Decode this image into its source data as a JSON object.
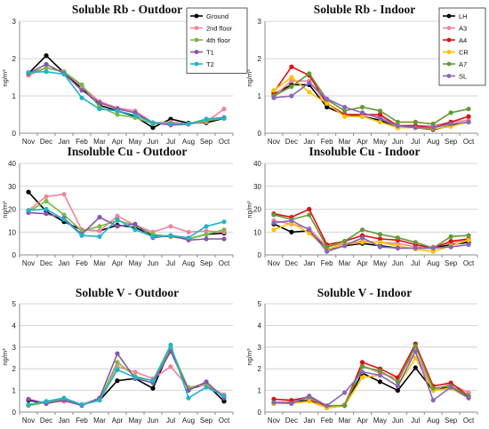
{
  "chart_data": [
    {
      "type": "line",
      "title": "Soluble Rb - Outdoor",
      "ylabel": "ng/m³",
      "ylim": [
        0,
        3
      ],
      "yticks": [
        "0",
        "1",
        "2",
        "3"
      ],
      "categories": [
        "Nov",
        "Dec",
        "Jan",
        "Feb",
        "Mar",
        "Apr",
        "May",
        "Jun",
        "Jul",
        "Aug",
        "Sep",
        "Oct"
      ],
      "legend": "top-right",
      "series": [
        {
          "name": "Ground",
          "color": "#000000",
          "values": [
            1.6,
            2.08,
            1.62,
            1.2,
            0.75,
            0.6,
            0.45,
            0.15,
            0.38,
            0.27,
            0.28,
            0.4
          ]
        },
        {
          "name": "2nd floor",
          "color": "#f4849b",
          "values": [
            1.55,
            1.75,
            1.65,
            1.25,
            0.85,
            0.68,
            0.6,
            0.28,
            0.3,
            0.25,
            0.3,
            0.65
          ]
        },
        {
          "name": "4th floor",
          "color": "#77bb44",
          "values": [
            1.6,
            1.75,
            1.65,
            1.3,
            0.7,
            0.5,
            0.42,
            0.25,
            0.27,
            0.24,
            0.33,
            0.4
          ]
        },
        {
          "name": "T1",
          "color": "#8855aa",
          "values": [
            1.6,
            1.85,
            1.6,
            1.15,
            0.82,
            0.65,
            0.55,
            0.28,
            0.22,
            0.24,
            0.38,
            0.42
          ]
        },
        {
          "name": "T2",
          "color": "#1fb5c8",
          "values": [
            1.63,
            1.65,
            1.58,
            0.95,
            0.65,
            0.6,
            0.48,
            0.28,
            0.25,
            0.25,
            0.38,
            0.4
          ]
        }
      ]
    },
    {
      "type": "line",
      "title": "Soluble Rb - Indoor",
      "ylabel": "ng/m³",
      "ylim": [
        0,
        3
      ],
      "yticks": [
        "0",
        "1",
        "2",
        "3"
      ],
      "categories": [
        "Nov",
        "Dec",
        "Jan",
        "Feb",
        "Mar",
        "Apr",
        "May",
        "Jun",
        "Jul",
        "Aug",
        "Sep",
        "Oct"
      ],
      "legend": "top-right",
      "series": [
        {
          "name": "LH",
          "color": "#000000",
          "values": [
            1.05,
            1.3,
            1.3,
            0.7,
            0.5,
            0.45,
            0.35,
            0.15,
            0.15,
            0.1,
            0.2,
            0.3
          ]
        },
        {
          "name": "A3",
          "color": "#f4849b",
          "values": [
            1.0,
            1.4,
            1.4,
            0.8,
            0.5,
            0.5,
            0.45,
            0.2,
            0.2,
            0.2,
            0.3,
            0.35
          ]
        },
        {
          "name": "A4",
          "color": "#dd1111",
          "values": [
            1.1,
            1.78,
            1.55,
            0.8,
            0.5,
            0.5,
            0.5,
            0.2,
            0.2,
            0.15,
            0.3,
            0.45
          ]
        },
        {
          "name": "CR",
          "color": "#ffc000",
          "values": [
            1.15,
            1.5,
            1.1,
            0.8,
            0.45,
            0.45,
            0.3,
            0.15,
            0.15,
            0.12,
            0.18,
            0.3
          ]
        },
        {
          "name": "A7",
          "color": "#669933",
          "values": [
            1.0,
            1.25,
            1.6,
            0.9,
            0.6,
            0.7,
            0.6,
            0.3,
            0.3,
            0.25,
            0.55,
            0.65
          ]
        },
        {
          "name": "SL",
          "color": "#8866bb",
          "values": [
            0.95,
            1.0,
            1.35,
            0.92,
            0.7,
            0.55,
            0.4,
            0.2,
            0.15,
            0.15,
            0.25,
            0.3
          ]
        }
      ]
    },
    {
      "type": "line",
      "title": "Insoluble Cu - Outdoor",
      "ylabel": "ng/m³",
      "ylim": [
        0,
        40
      ],
      "yticks": [
        "0",
        "10",
        "20",
        "30",
        "40"
      ],
      "categories": [
        "Nov",
        "Dec",
        "Jan",
        "Feb",
        "Mar",
        "Apr",
        "May",
        "Jun",
        "Jul",
        "Aug",
        "Sep",
        "Oct"
      ],
      "legend": "",
      "series": [
        {
          "name": "Ground",
          "color": "#000000",
          "values": [
            27.5,
            19.0,
            14.5,
            11.0,
            10.5,
            13.0,
            12.0,
            8.5,
            8.0,
            7.0,
            9.0,
            9.5
          ]
        },
        {
          "name": "2nd floor",
          "color": "#f4849b",
          "values": [
            19.5,
            25.5,
            26.5,
            11.0,
            10.5,
            17.0,
            13.0,
            10.0,
            12.5,
            10.0,
            10.5,
            10.0
          ]
        },
        {
          "name": "4th floor",
          "color": "#77bb44",
          "values": [
            19.0,
            23.5,
            17.5,
            10.5,
            12.5,
            15.0,
            13.0,
            9.0,
            8.0,
            7.0,
            9.0,
            11.0
          ]
        },
        {
          "name": "T1",
          "color": "#8855aa",
          "values": [
            18.5,
            18.0,
            16.0,
            9.0,
            16.5,
            12.5,
            13.5,
            7.5,
            8.5,
            6.5,
            7.0,
            7.0
          ]
        },
        {
          "name": "T2",
          "color": "#1fb5c8",
          "values": [
            19.5,
            20.0,
            15.5,
            8.5,
            8.0,
            15.5,
            11.0,
            8.0,
            8.5,
            7.5,
            12.5,
            14.5
          ]
        }
      ]
    },
    {
      "type": "line",
      "title": "Insoluble Cu - Indoor",
      "ylabel": "ng/m³",
      "ylim": [
        0,
        40
      ],
      "yticks": [
        "0",
        "10",
        "20",
        "30",
        "40"
      ],
      "categories": [
        "Nov",
        "Dec",
        "Jan",
        "Feb",
        "Mar",
        "Apr",
        "May",
        "Jun",
        "Jul",
        "Aug",
        "Sep",
        "Oct"
      ],
      "legend": "",
      "series": [
        {
          "name": "LH",
          "color": "#000000",
          "values": [
            13.5,
            10.0,
            10.5,
            2.5,
            4.0,
            5.0,
            4.0,
            3.0,
            3.0,
            3.0,
            4.5,
            5.5
          ]
        },
        {
          "name": "A3",
          "color": "#f4849b",
          "values": [
            15.0,
            13.5,
            11.5,
            3.5,
            5.0,
            6.0,
            5.5,
            5.0,
            3.5,
            3.5,
            5.5,
            6.5
          ]
        },
        {
          "name": "A4",
          "color": "#dd1111",
          "values": [
            18.0,
            16.5,
            20.0,
            4.5,
            6.0,
            8.5,
            7.0,
            6.5,
            4.5,
            3.0,
            6.0,
            7.0
          ]
        },
        {
          "name": "CR",
          "color": "#ffc000",
          "values": [
            11.0,
            14.0,
            9.5,
            2.5,
            4.5,
            5.5,
            5.5,
            4.0,
            2.5,
            1.5,
            4.0,
            6.5
          ]
        },
        {
          "name": "A7",
          "color": "#669933",
          "values": [
            17.5,
            15.5,
            17.5,
            3.5,
            6.0,
            11.0,
            9.0,
            7.5,
            5.5,
            3.0,
            8.0,
            8.5
          ]
        },
        {
          "name": "SL",
          "color": "#8866bb",
          "values": [
            14.0,
            15.0,
            11.0,
            1.5,
            4.0,
            7.5,
            3.5,
            3.0,
            3.0,
            3.0,
            3.5,
            4.5
          ]
        }
      ]
    },
    {
      "type": "line",
      "title": "Soluble V - Outdoor",
      "ylabel": "ng/m³",
      "ylim": [
        0,
        5
      ],
      "yticks": [
        "0",
        "1",
        "2",
        "3",
        "4",
        "5"
      ],
      "categories": [
        "Nov",
        "Dec",
        "Jan",
        "Feb",
        "Mar",
        "Apr",
        "May",
        "Jun",
        "Jul",
        "Aug",
        "Sep",
        "Oct"
      ],
      "legend": "",
      "series": [
        {
          "name": "Ground",
          "color": "#000000",
          "values": [
            0.55,
            0.4,
            0.55,
            0.35,
            0.55,
            1.45,
            1.55,
            1.1,
            2.95,
            1.05,
            1.3,
            0.5
          ]
        },
        {
          "name": "2nd floor",
          "color": "#f4849b",
          "values": [
            0.3,
            0.45,
            0.5,
            0.35,
            0.65,
            2.1,
            1.85,
            1.55,
            2.1,
            1.15,
            1.25,
            0.8
          ]
        },
        {
          "name": "4th floor",
          "color": "#77bb44",
          "values": [
            0.3,
            0.45,
            0.6,
            0.35,
            0.55,
            2.3,
            1.65,
            1.45,
            2.95,
            1.1,
            1.35,
            0.7
          ]
        },
        {
          "name": "T1",
          "color": "#8855aa",
          "values": [
            0.6,
            0.4,
            0.55,
            0.3,
            0.65,
            2.7,
            1.55,
            1.35,
            2.8,
            1.0,
            1.4,
            0.65
          ]
        },
        {
          "name": "T2",
          "color": "#1fb5c8",
          "values": [
            0.35,
            0.5,
            0.65,
            0.35,
            0.55,
            1.95,
            1.6,
            1.45,
            3.1,
            0.65,
            1.15,
            0.75
          ]
        }
      ]
    },
    {
      "type": "line",
      "title": "Soluble V - Indoor",
      "ylabel": "ng/m³",
      "ylim": [
        0,
        5
      ],
      "yticks": [
        "0",
        "1",
        "2",
        "3",
        "4",
        "5"
      ],
      "categories": [
        "Nov",
        "Dec",
        "Jan",
        "Feb",
        "Mar",
        "Apr",
        "May",
        "Jun",
        "Jul",
        "Aug",
        "Sep",
        "Oct"
      ],
      "legend": "",
      "series": [
        {
          "name": "LH",
          "color": "#000000",
          "values": [
            0.4,
            0.45,
            0.55,
            0.2,
            0.3,
            1.8,
            1.4,
            1.0,
            2.05,
            1.0,
            1.2,
            0.7
          ]
        },
        {
          "name": "A3",
          "color": "#f4849b",
          "values": [
            0.45,
            0.5,
            0.65,
            0.2,
            0.35,
            2.15,
            1.8,
            1.55,
            2.8,
            1.0,
            1.3,
            0.9
          ]
        },
        {
          "name": "A4",
          "color": "#dd1111",
          "values": [
            0.6,
            0.55,
            0.7,
            0.25,
            0.3,
            2.3,
            2.0,
            1.6,
            3.15,
            1.2,
            1.35,
            0.75
          ]
        },
        {
          "name": "CR",
          "color": "#ffc000",
          "values": [
            0.4,
            0.4,
            0.5,
            0.2,
            0.3,
            1.6,
            1.7,
            1.2,
            2.5,
            1.0,
            1.1,
            0.65
          ]
        },
        {
          "name": "A7",
          "color": "#669933",
          "values": [
            0.45,
            0.4,
            0.7,
            0.3,
            0.3,
            2.1,
            1.9,
            1.4,
            3.05,
            1.1,
            1.2,
            0.75
          ]
        },
        {
          "name": "SL",
          "color": "#8866bb",
          "values": [
            0.45,
            0.4,
            0.75,
            0.3,
            0.9,
            1.85,
            1.7,
            1.2,
            2.8,
            0.55,
            1.15,
            0.65
          ]
        }
      ]
    }
  ]
}
